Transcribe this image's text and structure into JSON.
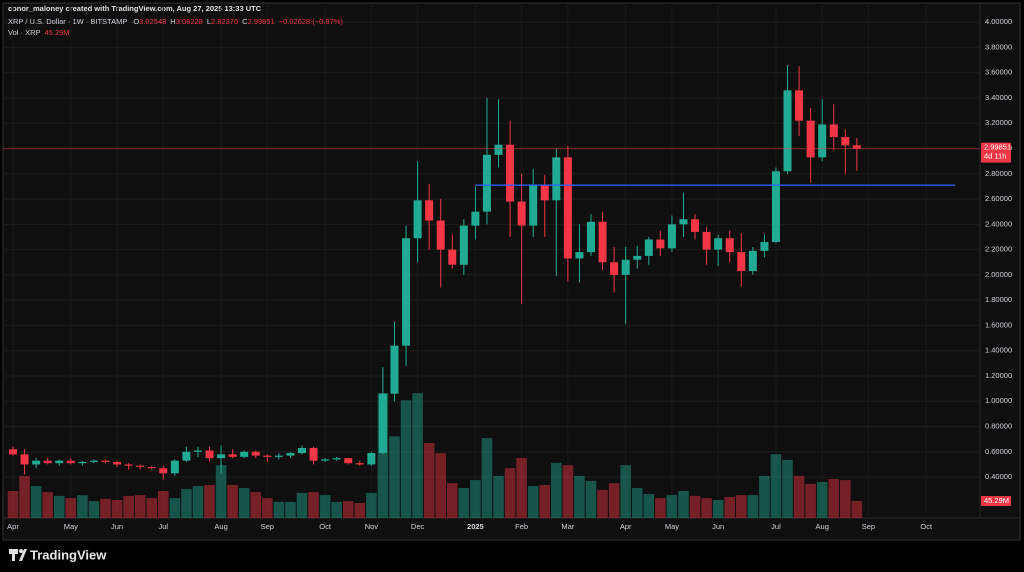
{
  "header": {
    "credit": "conor_maloney created with TradingView.com, Aug 27, 2025 13:33 UTC"
  },
  "footer": {
    "brand": "TradingView"
  },
  "chart_data": {
    "type": "candlestick",
    "legend": {
      "symbol": "XRP / U.S. Dollar · 1W · BITSTAMP",
      "keys": [
        "O",
        "H",
        "L",
        "C"
      ],
      "change": "−0.02628 (−0.87%)",
      "countdown": "4d 11h"
    },
    "categories": [
      "Apr",
      null,
      null,
      null,
      null,
      "May",
      null,
      null,
      null,
      "Jun",
      null,
      null,
      null,
      "Jul",
      null,
      null,
      null,
      null,
      "Aug",
      null,
      null,
      null,
      "Sep",
      null,
      null,
      null,
      null,
      "Oct",
      null,
      null,
      null,
      "Nov",
      null,
      null,
      null,
      "Dec",
      null,
      null,
      null,
      null,
      "2025",
      null,
      null,
      null,
      "Feb",
      null,
      null,
      null,
      "Mar",
      null,
      null,
      null,
      null,
      "Apr",
      null,
      null,
      null,
      "May",
      null,
      null,
      null,
      "Jun",
      null,
      null,
      null,
      null,
      "Jul",
      null,
      null,
      null,
      "Aug",
      null,
      null,
      null,
      "Sep",
      null,
      null,
      null,
      null,
      "Oct"
    ],
    "open": [
      0.62,
      0.58,
      0.5,
      0.53,
      0.51,
      0.53,
      0.51,
      0.52,
      0.53,
      0.52,
      0.5,
      0.49,
      0.48,
      0.47,
      0.43,
      0.53,
      0.6,
      0.61,
      0.55,
      0.58,
      0.56,
      0.6,
      0.57,
      0.56,
      0.57,
      0.59,
      0.63,
      0.53,
      0.54,
      0.55,
      0.51,
      0.5,
      0.59,
      1.06,
      1.44,
      2.29,
      2.59,
      2.43,
      2.2,
      2.08,
      2.39,
      2.5,
      2.95,
      3.03,
      2.58,
      2.39,
      2.71,
      2.59,
      2.93,
      2.13,
      2.18,
      2.42,
      2.1,
      2.0,
      2.12,
      2.15,
      2.28,
      2.21,
      2.4,
      2.44,
      2.34,
      2.2,
      2.29,
      2.18,
      2.03,
      2.19,
      2.26,
      2.82,
      3.46,
      3.22,
      2.93,
      3.19,
      3.09,
      3.02548,
      null,
      null,
      null,
      null,
      null,
      null
    ],
    "high": [
      0.64,
      0.62,
      0.55,
      0.55,
      0.54,
      0.55,
      0.53,
      0.54,
      0.54,
      0.53,
      0.51,
      0.5,
      0.49,
      0.49,
      0.54,
      0.64,
      0.64,
      0.64,
      0.65,
      0.62,
      0.61,
      0.61,
      0.58,
      0.59,
      0.6,
      0.65,
      0.64,
      0.55,
      0.56,
      0.55,
      0.53,
      0.6,
      1.27,
      1.63,
      2.39,
      2.9,
      2.72,
      2.6,
      2.32,
      2.44,
      2.7,
      3.4,
      3.39,
      3.22,
      2.8,
      2.84,
      2.79,
      3.0,
      3.02,
      2.4,
      2.48,
      2.5,
      2.22,
      2.22,
      2.23,
      2.3,
      2.35,
      2.47,
      2.65,
      2.48,
      2.38,
      2.32,
      2.35,
      2.33,
      2.22,
      2.32,
      2.85,
      3.66,
      3.65,
      3.32,
      3.39,
      3.35,
      3.15,
      3.08228,
      null,
      null,
      null,
      null,
      null,
      null
    ],
    "low": [
      0.57,
      0.42,
      0.47,
      0.5,
      0.49,
      0.5,
      0.49,
      0.51,
      0.51,
      0.48,
      0.46,
      0.46,
      0.46,
      0.38,
      0.41,
      0.52,
      0.56,
      0.52,
      0.43,
      0.55,
      0.55,
      0.55,
      0.52,
      0.54,
      0.55,
      0.58,
      0.5,
      0.52,
      0.53,
      0.5,
      0.49,
      0.49,
      0.58,
      1.0,
      1.28,
      2.1,
      2.2,
      1.9,
      2.05,
      2.0,
      2.28,
      2.4,
      2.85,
      2.3,
      1.77,
      2.3,
      2.3,
      1.99,
      1.95,
      1.94,
      2.15,
      2.04,
      1.86,
      1.61,
      2.05,
      2.08,
      2.15,
      2.18,
      2.3,
      2.28,
      2.08,
      2.07,
      2.1,
      1.91,
      2.0,
      2.14,
      2.25,
      2.8,
      3.1,
      2.73,
      2.9,
      2.99,
      2.8,
      2.82376,
      null,
      null,
      null,
      null,
      null,
      null
    ],
    "close": [
      0.58,
      0.5,
      0.53,
      0.51,
      0.53,
      0.51,
      0.52,
      0.53,
      0.52,
      0.5,
      0.49,
      0.48,
      0.47,
      0.43,
      0.53,
      0.6,
      0.61,
      0.55,
      0.58,
      0.56,
      0.6,
      0.57,
      0.56,
      0.57,
      0.59,
      0.63,
      0.53,
      0.54,
      0.55,
      0.51,
      0.5,
      0.59,
      1.06,
      1.44,
      2.29,
      2.59,
      2.43,
      2.2,
      2.08,
      2.39,
      2.5,
      2.95,
      3.03,
      2.58,
      2.39,
      2.71,
      2.59,
      2.93,
      2.13,
      2.18,
      2.42,
      2.1,
      2.0,
      2.12,
      2.15,
      2.28,
      2.21,
      2.4,
      2.44,
      2.34,
      2.2,
      2.29,
      2.18,
      2.03,
      2.19,
      2.26,
      2.82,
      3.46,
      3.22,
      2.93,
      3.19,
      3.09,
      3.02479,
      2.99851,
      null,
      null,
      null,
      null,
      null,
      null
    ],
    "volume": {
      "name": "Vol · XRP",
      "volume_label": "45.29M",
      "ylim": [
        0,
        400
      ],
      "values": [
        72,
        112,
        85,
        69,
        59,
        53,
        61,
        45,
        51,
        48,
        59,
        61,
        53,
        72,
        53,
        77,
        85,
        88,
        141,
        88,
        80,
        69,
        53,
        43,
        43,
        67,
        69,
        61,
        43,
        45,
        40,
        67,
        333,
        218,
        314,
        333,
        200,
        173,
        93,
        80,
        101,
        213,
        112,
        133,
        160,
        85,
        88,
        147,
        141,
        112,
        99,
        75,
        93,
        141,
        80,
        64,
        53,
        61,
        72,
        59,
        53,
        48,
        56,
        61,
        61,
        112,
        170,
        155,
        112,
        91,
        96,
        104,
        101,
        45.29,
        null,
        null,
        null,
        null,
        null,
        null
      ]
    },
    "up_color": "#22ab94",
    "down_color": "#f23645",
    "ylim": [
      0.1,
      4.08
    ],
    "yticks": [
      {
        "value": 0.4,
        "label": "0.40000"
      },
      {
        "value": 0.6,
        "label": "0.60000"
      },
      {
        "value": 0.8,
        "label": "0.80000"
      },
      {
        "value": 1,
        "label": "1.00000"
      },
      {
        "value": 1.2,
        "label": "1.20000"
      },
      {
        "value": 1.4,
        "label": "1.40000"
      },
      {
        "value": 1.6,
        "label": "1.60000"
      },
      {
        "value": 1.8,
        "label": "1.80000"
      },
      {
        "value": 2,
        "label": "2.00000"
      },
      {
        "value": 2.2,
        "label": "2.20000"
      },
      {
        "value": 2.4,
        "label": "2.40000"
      },
      {
        "value": 2.6,
        "label": "2.60000"
      },
      {
        "value": 2.8,
        "label": "2.80000"
      },
      {
        "value": 3,
        "label": "3.00000"
      },
      {
        "value": 3.2,
        "label": "3.20000"
      },
      {
        "value": 3.4,
        "label": "3.40000"
      },
      {
        "value": 3.6,
        "label": "3.60000"
      },
      {
        "value": 3.8,
        "label": "3.80000"
      },
      {
        "value": 4,
        "label": "4.00000"
      }
    ],
    "grid": true,
    "hline": {
      "value": 2.71,
      "color": "#2962ff",
      "start": "2025"
    }
  }
}
